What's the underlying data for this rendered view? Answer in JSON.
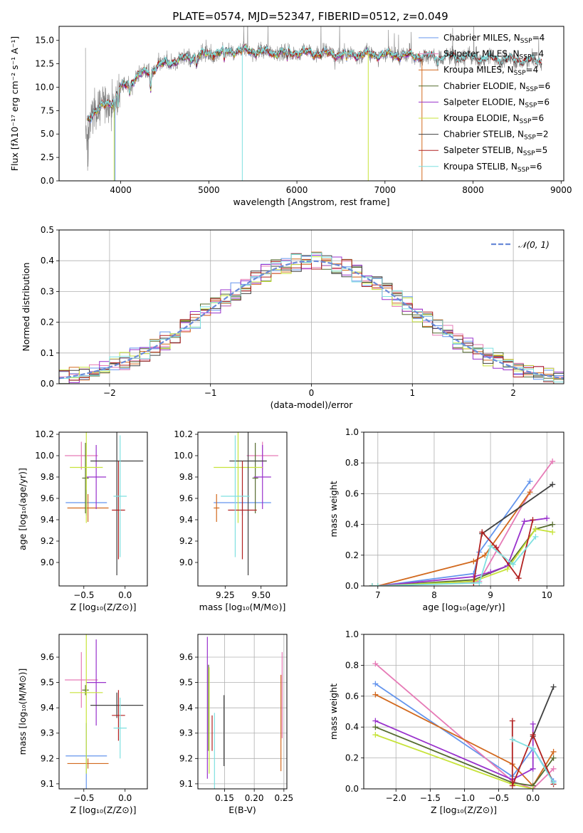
{
  "chart_data": [
    {
      "id": "spectrum",
      "type": "line",
      "title": "PLATE=0574, MJD=52347, FIBERID=0512, z=0.049",
      "xlabel": "wavelength [Angstrom, rest frame]",
      "ylabel": "Flux [fλ10⁻¹⁷ erg cm⁻² s⁻¹ A⁻¹]",
      "xlim": [
        3300,
        9030
      ],
      "ylim": [
        0,
        16.5
      ],
      "xticks": [
        4000,
        5000,
        6000,
        7000,
        8000,
        9000
      ],
      "yticks": [
        0.0,
        2.5,
        5.0,
        7.5,
        10.0,
        12.5,
        15.0
      ],
      "grid": false,
      "legend_position": "top-right",
      "legend": [
        {
          "text": "Chabrier MILES, N",
          "sub": "SSP",
          "tail": "=4",
          "color": "#6495ed"
        },
        {
          "text": "Salpeter MILES, N",
          "sub": "SSP",
          "tail": "=4",
          "color": "#e67ab6"
        },
        {
          "text": "Kroupa MILES, N",
          "sub": "SSP",
          "tail": "=4",
          "color": "#d2691e"
        },
        {
          "text": "Chabrier ELODIE, N",
          "sub": "SSP",
          "tail": "=6",
          "color": "#556b2f"
        },
        {
          "text": "Salpeter ELODIE, N",
          "sub": "SSP",
          "tail": "=6",
          "color": "#9932cc"
        },
        {
          "text": "Kroupa ELODIE, N",
          "sub": "SSP",
          "tail": "=6",
          "color": "#c7e33a"
        },
        {
          "text": "Chabrier STELIB, N",
          "sub": "SSP",
          "tail": "=2",
          "color": "#404040"
        },
        {
          "text": "Salpeter STELIB, N",
          "sub": "SSP",
          "tail": "=5",
          "color": "#b22222"
        },
        {
          "text": "Kroupa STELIB, N",
          "sub": "SSP",
          "tail": "=6",
          "color": "#7fe0e0"
        }
      ],
      "continuum": [
        [
          3620,
          7.0
        ],
        [
          3700,
          7.6
        ],
        [
          3800,
          8.3
        ],
        [
          3900,
          8.8
        ],
        [
          4000,
          10.2
        ],
        [
          4100,
          10.8
        ],
        [
          4200,
          11.5
        ],
        [
          4300,
          11.9
        ],
        [
          4400,
          12.4
        ],
        [
          4500,
          12.8
        ],
        [
          4700,
          13.3
        ],
        [
          4900,
          13.7
        ],
        [
          5100,
          14.0
        ],
        [
          5300,
          14.2
        ],
        [
          5500,
          14.2
        ],
        [
          5700,
          14.0
        ],
        [
          6000,
          14.0
        ],
        [
          6300,
          13.9
        ],
        [
          6500,
          13.8
        ],
        [
          6700,
          13.8
        ],
        [
          7000,
          13.8
        ],
        [
          7200,
          13.7
        ],
        [
          7400,
          13.6
        ],
        [
          7600,
          13.5
        ],
        [
          7800,
          13.5
        ],
        [
          8000,
          13.4
        ],
        [
          8200,
          13.3
        ],
        [
          8400,
          13.2
        ],
        [
          8600,
          13.1
        ],
        [
          8760,
          13.1
        ]
      ],
      "data_range": [
        3600,
        8780
      ],
      "model_range": [
        3620,
        7400
      ],
      "model_range_full": [
        3620,
        8780
      ]
    },
    {
      "id": "residuals",
      "type": "histogram",
      "xlabel": "(data-model)/error",
      "ylabel": "Normed distribution",
      "xlim": [
        -2.5,
        2.5
      ],
      "ylim": [
        0,
        0.5
      ],
      "xticks": [
        -2,
        -1,
        0,
        1,
        2
      ],
      "xtick_labels": [
        "−2",
        "−1",
        "0",
        "1",
        "2"
      ],
      "yticks": [
        0.0,
        0.1,
        0.2,
        0.3,
        0.4,
        0.5
      ],
      "grid": true,
      "legend_position": "top-right",
      "legend_label": "𝒩(0, 1)",
      "reference": {
        "name": "𝒩(0, 1)",
        "mean": 0,
        "sigma": 1,
        "style": "dashed",
        "color": "#6a8ad8"
      },
      "bin_width": 0.1
    },
    {
      "id": "age-vs-Z",
      "type": "errorbar",
      "xlabel": "Z [log₁₀(Z/Z⊙)]",
      "ylabel": "age  [log₁₀(age/yr)]",
      "xlim": [
        -0.8,
        0.27
      ],
      "ylim": [
        8.78,
        10.22
      ],
      "xticks": [
        -0.5,
        0.0
      ],
      "xtick_labels": [
        "−0.5",
        "0.0"
      ],
      "yticks": [
        9.0,
        9.2,
        9.4,
        9.6,
        9.8,
        10.0,
        10.2
      ],
      "grid": false,
      "points": [
        {
          "color": "#6495ed",
          "x": -0.47,
          "xerr": 0.25,
          "y": 9.56,
          "yerr": 0.12
        },
        {
          "color": "#e67ab6",
          "x": -0.53,
          "xerr": 0.2,
          "y": 10.0,
          "yerr": 0.13
        },
        {
          "color": "#d2691e",
          "x": -0.45,
          "xerr": 0.25,
          "y": 9.51,
          "yerr": 0.13
        },
        {
          "color": "#556b2f",
          "x": -0.48,
          "xerr": 0.04,
          "y": 9.79,
          "yerr": 0.33
        },
        {
          "color": "#9932cc",
          "x": -0.35,
          "xerr": 0.12,
          "y": 9.8,
          "yerr": 0.3
        },
        {
          "color": "#c7e33a",
          "x": -0.47,
          "xerr": 0.2,
          "y": 9.89,
          "yerr": 0.52
        },
        {
          "color": "#404040",
          "x": -0.1,
          "xerr": 0.32,
          "y": 9.95,
          "yerr": 1.07
        },
        {
          "color": "#b22222",
          "x": -0.08,
          "xerr": 0.08,
          "y": 9.49,
          "yerr": 0.46
        },
        {
          "color": "#7fe0e0",
          "x": -0.06,
          "xerr": 0.08,
          "y": 9.62,
          "yerr": 0.57
        }
      ]
    },
    {
      "id": "age-vs-mass",
      "type": "errorbar",
      "xlabel": "mass [log₁₀(M/M⊙)]",
      "ylabel": "",
      "xlim": [
        9.06,
        9.68
      ],
      "ylim": [
        8.78,
        10.22
      ],
      "xticks": [
        9.25,
        9.5
      ],
      "xtick_labels": [
        "9.25",
        "9.50"
      ],
      "yticks": [
        9.0,
        9.2,
        9.4,
        9.6,
        9.8,
        10.0,
        10.2
      ],
      "grid": false,
      "points": [
        {
          "color": "#6495ed",
          "x": 9.37,
          "xerr": 0.2,
          "y": 9.56,
          "yerr": 0.12
        },
        {
          "color": "#e67ab6",
          "x": 9.51,
          "xerr": 0.11,
          "y": 10.0,
          "yerr": 0.13
        },
        {
          "color": "#d2691e",
          "x": 9.19,
          "xerr": 0.02,
          "y": 9.51,
          "yerr": 0.13
        },
        {
          "color": "#556b2f",
          "x": 9.46,
          "xerr": 0.02,
          "y": 9.79,
          "yerr": 0.33
        },
        {
          "color": "#9932cc",
          "x": 9.51,
          "xerr": 0.06,
          "y": 9.8,
          "yerr": 0.3
        },
        {
          "color": "#c7e33a",
          "x": 9.34,
          "xerr": 0.17,
          "y": 9.89,
          "yerr": 0.52
        },
        {
          "color": "#404040",
          "x": 9.41,
          "xerr": 0.13,
          "y": 9.95,
          "yerr": 1.07
        },
        {
          "color": "#b22222",
          "x": 9.37,
          "xerr": 0.1,
          "y": 9.49,
          "yerr": 0.46
        },
        {
          "color": "#7fe0e0",
          "x": 9.32,
          "xerr": 0.1,
          "y": 9.62,
          "yerr": 0.57
        }
      ]
    },
    {
      "id": "weight-vs-age",
      "type": "line",
      "xlabel": "age  [log₁₀(age/yr)]",
      "ylabel": "mass weight",
      "xlim": [
        6.75,
        10.3
      ],
      "ylim": [
        0,
        1.0
      ],
      "xticks": [
        7,
        8,
        9,
        10
      ],
      "yticks": [
        0.0,
        0.2,
        0.4,
        0.6,
        0.8,
        1.0
      ],
      "grid": true,
      "series": [
        {
          "color": "#6495ed",
          "x": [
            6.9,
            7.0,
            8.7,
            8.8,
            9.7
          ],
          "y": [
            0.0,
            0.0,
            0.08,
            0.22,
            0.68
          ]
        },
        {
          "color": "#e67ab6",
          "x": [
            6.9,
            7.0,
            8.8,
            9.7,
            10.1
          ],
          "y": [
            0.0,
            0.0,
            0.03,
            0.61,
            0.81
          ]
        },
        {
          "color": "#d2691e",
          "x": [
            6.9,
            7.0,
            8.7,
            8.9,
            9.7
          ],
          "y": [
            0.0,
            0.0,
            0.16,
            0.2,
            0.61
          ]
        },
        {
          "color": "#556b2f",
          "x": [
            6.9,
            7.0,
            8.7,
            9.3,
            9.8,
            10.1
          ],
          "y": [
            0.0,
            0.0,
            0.04,
            0.13,
            0.37,
            0.4
          ]
        },
        {
          "color": "#9932cc",
          "x": [
            6.9,
            7.0,
            8.7,
            9.0,
            9.3,
            9.6,
            10.0
          ],
          "y": [
            0.0,
            0.0,
            0.06,
            0.09,
            0.13,
            0.42,
            0.44
          ]
        },
        {
          "color": "#c7e33a",
          "x": [
            6.9,
            7.0,
            8.7,
            9.3,
            9.8,
            10.1
          ],
          "y": [
            0.0,
            0.0,
            0.03,
            0.11,
            0.37,
            0.35
          ]
        },
        {
          "color": "#404040",
          "x": [
            8.85,
            10.1
          ],
          "y": [
            0.34,
            0.66
          ]
        },
        {
          "color": "#b22222",
          "x": [
            8.7,
            8.85,
            9.1,
            9.5,
            9.75
          ],
          "y": [
            0.02,
            0.35,
            0.25,
            0.05,
            0.43
          ]
        },
        {
          "color": "#7fe0e0",
          "x": [
            6.9,
            7.0,
            8.8,
            9.0,
            9.4,
            9.8
          ],
          "y": [
            0.0,
            0.0,
            0.02,
            0.26,
            0.14,
            0.32
          ]
        }
      ]
    },
    {
      "id": "mass-vs-Z",
      "type": "errorbar",
      "xlabel": "Z [log₁₀(Z/Z⊙)]",
      "ylabel": "mass [log₁₀(M/M⊙)]",
      "xlim": [
        -0.8,
        0.27
      ],
      "ylim": [
        9.08,
        9.69
      ],
      "xticks": [
        -0.5,
        0.0
      ],
      "xtick_labels": [
        "−0.5",
        "0.0"
      ],
      "yticks": [
        9.1,
        9.2,
        9.3,
        9.4,
        9.5,
        9.6
      ],
      "grid": false,
      "points": [
        {
          "color": "#6495ed",
          "x": -0.47,
          "xerr": 0.25,
          "y": 9.21,
          "yerr": 0.13
        },
        {
          "color": "#e67ab6",
          "x": -0.53,
          "xerr": 0.2,
          "y": 9.51,
          "yerr": 0.11
        },
        {
          "color": "#d2691e",
          "x": -0.45,
          "xerr": 0.25,
          "y": 9.18,
          "yerr": 0.02
        },
        {
          "color": "#556b2f",
          "x": -0.48,
          "xerr": 0.04,
          "y": 9.47,
          "yerr": 0.02
        },
        {
          "color": "#9932cc",
          "x": -0.35,
          "xerr": 0.12,
          "y": 9.5,
          "yerr": 0.17
        },
        {
          "color": "#c7e33a",
          "x": -0.47,
          "xerr": 0.2,
          "y": 9.46,
          "yerr": 0.32
        },
        {
          "color": "#404040",
          "x": -0.1,
          "xerr": 0.32,
          "y": 9.41,
          "yerr": 0.05
        },
        {
          "color": "#b22222",
          "x": -0.08,
          "xerr": 0.08,
          "y": 9.37,
          "yerr": 0.1
        },
        {
          "color": "#7fe0e0",
          "x": -0.06,
          "xerr": 0.08,
          "y": 9.32,
          "yerr": 0.12
        }
      ]
    },
    {
      "id": "mass-vs-EBV",
      "type": "errorbar",
      "xlabel": "E(B-V)",
      "ylabel": "",
      "xlim": [
        0.105,
        0.255
      ],
      "ylim": [
        9.08,
        9.69
      ],
      "xticks": [
        0.15,
        0.2,
        0.25
      ],
      "xtick_labels": [
        "0.15",
        "0.20",
        "0.25"
      ],
      "yticks": [
        9.1,
        9.2,
        9.3,
        9.4,
        9.5,
        9.6
      ],
      "grid": true,
      "points": [
        {
          "color": "#9932cc",
          "x": 0.121,
          "xerr": 0,
          "y": 9.4,
          "yerr": 0.28
        },
        {
          "color": "#556b2f",
          "x": 0.123,
          "xerr": 0,
          "y": 9.4,
          "yerr": 0.17
        },
        {
          "color": "#c7e33a",
          "x": 0.124,
          "xerr": 0,
          "y": 9.35,
          "yerr": 0.21
        },
        {
          "color": "#b22222",
          "x": 0.129,
          "xerr": 0,
          "y": 9.3,
          "yerr": 0.07
        },
        {
          "color": "#7fe0e0",
          "x": 0.133,
          "xerr": 0,
          "y": 9.22,
          "yerr": 0.16
        },
        {
          "color": "#404040",
          "x": 0.149,
          "xerr": 0,
          "y": 9.31,
          "yerr": 0.14
        },
        {
          "color": "#d2691e",
          "x": 0.245,
          "xerr": 0,
          "y": 9.34,
          "yerr": 0.19
        },
        {
          "color": "#e67ab6",
          "x": 0.247,
          "xerr": 0,
          "y": 9.45,
          "yerr": 0.17
        }
      ]
    },
    {
      "id": "weight-vs-Z",
      "type": "line",
      "xlabel": "Z [log₁₀(Z/Z⊙)]",
      "ylabel": "mass weight",
      "xlim": [
        -2.47,
        0.45
      ],
      "ylim": [
        0,
        1.0
      ],
      "xticks": [
        -2.0,
        -1.5,
        -1.0,
        -0.5,
        0.0
      ],
      "xtick_labels": [
        "−2.0",
        "−1.5",
        "−1.0",
        "−0.5",
        "0.0"
      ],
      "yticks": [
        0.0,
        0.2,
        0.4,
        0.6,
        0.8,
        1.0
      ],
      "grid": true,
      "series": [
        {
          "color": "#6495ed",
          "x": [
            -2.3,
            -0.3,
            0.0,
            0.3
          ],
          "y": [
            0.68,
            0.08,
            0.26,
            0.05
          ]
        },
        {
          "color": "#e67ab6",
          "x": [
            -2.3,
            -0.3,
            0.0,
            0.3
          ],
          "y": [
            0.81,
            0.05,
            0.0,
            0.13
          ]
        },
        {
          "color": "#d2691e",
          "x": [
            -2.3,
            -0.3,
            0.0,
            0.3
          ],
          "y": [
            0.61,
            0.16,
            0.02,
            0.24
          ]
        },
        {
          "color": "#556b2f",
          "x": [
            -2.3,
            -0.3,
            0.0,
            0.3
          ],
          "y": [
            0.4,
            0.04,
            0.02,
            0.2
          ]
        },
        {
          "color": "#9932cc",
          "x": [
            -2.3,
            -0.3,
            0.0,
            0.0
          ],
          "y": [
            0.44,
            0.06,
            0.13,
            0.42
          ]
        },
        {
          "color": "#c7e33a",
          "x": [
            -2.3,
            -0.3,
            0.0
          ],
          "y": [
            0.35,
            0.03,
            0.0
          ]
        },
        {
          "color": "#404040",
          "x": [
            0.0,
            0.3
          ],
          "y": [
            0.34,
            0.66
          ]
        },
        {
          "color": "#b22222",
          "x": [
            -0.3,
            -0.3,
            0.0,
            0.3
          ],
          "y": [
            0.44,
            0.02,
            0.35,
            0.03
          ]
        },
        {
          "color": "#7fe0e0",
          "x": [
            -0.3,
            0.0,
            0.3
          ],
          "y": [
            0.32,
            0.26,
            0.04
          ]
        }
      ]
    }
  ]
}
